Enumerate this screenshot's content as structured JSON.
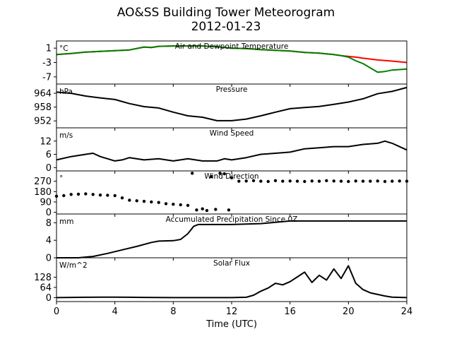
{
  "figure": {
    "title": "AO&SS Building Tower Meteorogram",
    "subtitle": "2012-01-23",
    "xlabel": "Time (UTC)"
  },
  "chart_data": [
    {
      "type": "line",
      "title": "Air and Dewpoint Temperature",
      "ylabel": "°C",
      "xlim": [
        0,
        24
      ],
      "ylim": [
        -9,
        3
      ],
      "yticks": [
        1,
        -3,
        -7
      ],
      "xticks": [
        0,
        4,
        8,
        12,
        16,
        20,
        24
      ],
      "series": [
        {
          "color": "#ff0000",
          "x": [
            0,
            1,
            2,
            3,
            4,
            5,
            6,
            6.5,
            7,
            8,
            9,
            10,
            11,
            12,
            13,
            14,
            15,
            16,
            17,
            18,
            19,
            19.5,
            20,
            20.5,
            21,
            22,
            23,
            24
          ],
          "y": [
            -0.8,
            -0.5,
            -0.1,
            0.1,
            0.3,
            0.5,
            1.3,
            1.2,
            1.5,
            1.6,
            1.6,
            1.6,
            1.4,
            1.0,
            0.9,
            0.6,
            0.4,
            0.2,
            -0.2,
            -0.4,
            -0.8,
            -1.1,
            -1.3,
            -1.5,
            -1.8,
            -2.3,
            -2.6,
            -3.0
          ]
        },
        {
          "color": "#008000",
          "x": [
            0,
            1,
            2,
            3,
            4,
            5,
            6,
            6.5,
            7,
            8,
            9,
            10,
            11,
            12,
            13,
            14,
            15,
            16,
            17,
            18,
            19,
            19.5,
            20,
            20.5,
            21,
            21.5,
            22,
            22.5,
            23,
            24
          ],
          "y": [
            -0.8,
            -0.5,
            -0.1,
            0.1,
            0.3,
            0.5,
            1.3,
            1.2,
            1.5,
            1.6,
            1.6,
            1.6,
            1.4,
            1.0,
            0.9,
            0.6,
            0.4,
            0.2,
            -0.2,
            -0.4,
            -0.8,
            -1.1,
            -1.5,
            -2.5,
            -3.3,
            -4.5,
            -5.7,
            -5.5,
            -5.1,
            -4.8
          ]
        }
      ]
    },
    {
      "type": "line",
      "title": "Pressure",
      "ylabel": "hPa",
      "xlim": [
        0,
        24
      ],
      "ylim": [
        949,
        968
      ],
      "yticks": [
        964,
        958,
        952
      ],
      "xticks": [
        0,
        4,
        8,
        12,
        16,
        20,
        24
      ],
      "series": [
        {
          "color": "#000000",
          "x": [
            0,
            1,
            2,
            3,
            4,
            5,
            6,
            7,
            8,
            9,
            10,
            11,
            12,
            13,
            14,
            15,
            16,
            17,
            18,
            19,
            20,
            21,
            22,
            23,
            24
          ],
          "y": [
            964.5,
            964,
            962.8,
            962,
            961.3,
            959.5,
            958.2,
            957.6,
            955.8,
            954.2,
            953.6,
            952.1,
            952.1,
            952.8,
            954.2,
            955.8,
            957.3,
            957.8,
            958.3,
            959.2,
            960.2,
            961.6,
            963.8,
            964.8,
            966.5
          ]
        }
      ]
    },
    {
      "type": "line",
      "title": "Wind Speed",
      "ylabel": "m/s",
      "xlim": [
        0,
        24
      ],
      "ylim": [
        -1.5,
        18
      ],
      "yticks": [
        12,
        6,
        0
      ],
      "xticks": [
        0,
        4,
        8,
        12,
        16,
        20,
        24
      ],
      "series": [
        {
          "color": "#000000",
          "x": [
            0,
            1,
            2,
            2.5,
            3,
            4,
            4.5,
            5,
            6,
            7,
            8,
            9,
            10,
            11,
            11.5,
            12,
            13,
            14,
            15,
            16,
            17,
            18,
            19,
            20,
            21,
            22,
            22.5,
            23,
            24
          ],
          "y": [
            3.5,
            5,
            6,
            6.5,
            5,
            3,
            3.5,
            4.5,
            3.5,
            4,
            3,
            4,
            3,
            3,
            4,
            3.5,
            4.5,
            6,
            6.5,
            7,
            8.5,
            9,
            9.5,
            9.5,
            10.5,
            11,
            12,
            11,
            8
          ]
        }
      ]
    },
    {
      "type": "scatter",
      "title": "Wind Direction",
      "ylabel": "°",
      "xlim": [
        0,
        24
      ],
      "ylim": [
        -15,
        360
      ],
      "yticks": [
        270,
        180,
        90,
        0
      ],
      "xticks": [
        0,
        4,
        8,
        12,
        16,
        20,
        24
      ],
      "series": [
        {
          "color": "#000000",
          "x": [
            0,
            0.5,
            1,
            1.5,
            2,
            2.5,
            3,
            3.5,
            4,
            4.5,
            5,
            5.5,
            6,
            6.5,
            7,
            7.5,
            8,
            8.5,
            9,
            9.3,
            9.6,
            10,
            10.3,
            10.6,
            10.9,
            11.2,
            11.5,
            11.8,
            12,
            12.5,
            13,
            13.5,
            14,
            14.5,
            15,
            15.5,
            16,
            16.5,
            17,
            17.5,
            18,
            18.5,
            19,
            19.5,
            20,
            20.5,
            21,
            21.5,
            22,
            22.5,
            23,
            23.5,
            24
          ],
          "y": [
            140,
            145,
            155,
            158,
            160,
            155,
            150,
            148,
            145,
            125,
            105,
            100,
            95,
            90,
            85,
            75,
            70,
            65,
            60,
            340,
            20,
            30,
            15,
            310,
            25,
            340,
            335,
            20,
            300,
            270,
            272,
            275,
            270,
            268,
            275,
            270,
            272,
            270,
            268,
            272,
            270,
            275,
            272,
            270,
            268,
            272,
            270,
            270,
            272,
            268,
            270,
            272,
            270
          ]
        }
      ]
    },
    {
      "type": "line",
      "title": "Accumulated Precipitation Since 0Z",
      "ylabel": "mm",
      "xlim": [
        0,
        24
      ],
      "ylim": [
        0,
        10
      ],
      "yticks": [
        8,
        4,
        0
      ],
      "xticks": [
        0,
        4,
        8,
        12,
        16,
        20,
        24
      ],
      "series": [
        {
          "color": "#000000",
          "x": [
            0,
            1.5,
            2.5,
            3.5,
            4.5,
            5.5,
            6.5,
            7,
            8,
            8.5,
            9,
            9.4,
            9.7,
            10,
            12,
            14,
            15,
            16,
            18,
            20,
            24
          ],
          "y": [
            0,
            0,
            0.3,
            1,
            1.8,
            2.6,
            3.5,
            3.8,
            3.9,
            4.2,
            5.5,
            7.2,
            7.6,
            7.6,
            7.6,
            7.8,
            8.1,
            8.4,
            8.4,
            8.4,
            8.4
          ]
        }
      ]
    },
    {
      "type": "line",
      "title": "Solar Flux",
      "ylabel": "W/m^2",
      "xlim": [
        0,
        24
      ],
      "ylim": [
        -25,
        250
      ],
      "yticks": [
        128,
        64,
        0
      ],
      "xticks": [
        0,
        4,
        8,
        12,
        16,
        20,
        24
      ],
      "series": [
        {
          "color": "#000000",
          "x": [
            0,
            1,
            2,
            3,
            4,
            5,
            6,
            8,
            10,
            12,
            13,
            13.5,
            14,
            14.5,
            15,
            15.5,
            16,
            16.5,
            17,
            17.5,
            18,
            18.5,
            19,
            19.5,
            20,
            20.5,
            21,
            21.5,
            22,
            22.5,
            23,
            24
          ],
          "y": [
            0,
            1,
            2,
            3,
            3,
            2,
            1,
            0,
            0,
            0,
            2,
            15,
            40,
            60,
            90,
            80,
            100,
            130,
            160,
            95,
            140,
            110,
            180,
            120,
            200,
            90,
            50,
            30,
            20,
            10,
            3,
            0
          ]
        }
      ]
    }
  ]
}
